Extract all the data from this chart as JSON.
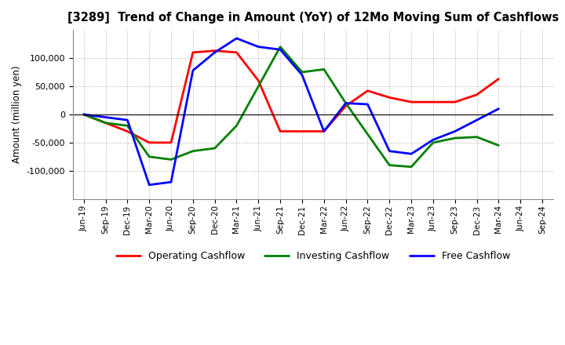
{
  "title": "[3289]  Trend of Change in Amount (YoY) of 12Mo Moving Sum of Cashflows",
  "ylabel": "Amount (million yen)",
  "x_labels": [
    "Jun-19",
    "Sep-19",
    "Dec-19",
    "Mar-20",
    "Jun-20",
    "Sep-20",
    "Dec-20",
    "Mar-21",
    "Jun-21",
    "Sep-21",
    "Dec-21",
    "Mar-22",
    "Jun-22",
    "Sep-22",
    "Dec-22",
    "Mar-23",
    "Jun-23",
    "Sep-23",
    "Dec-23",
    "Mar-24",
    "Jun-24",
    "Sep-24"
  ],
  "operating": [
    0,
    -15000,
    -30000,
    -50000,
    -50000,
    110000,
    113000,
    110000,
    60000,
    -30000,
    -30000,
    -30000,
    15000,
    42000,
    30000,
    22000,
    22000,
    22000,
    35000,
    63000,
    null,
    null
  ],
  "investing": [
    0,
    -15000,
    -20000,
    -75000,
    -80000,
    -65000,
    -60000,
    -20000,
    50000,
    120000,
    75000,
    80000,
    20000,
    -35000,
    -90000,
    -93000,
    -50000,
    -42000,
    -40000,
    -55000,
    null,
    null
  ],
  "free": [
    0,
    -5000,
    -10000,
    -125000,
    -120000,
    78000,
    110000,
    135000,
    120000,
    115000,
    70000,
    -30000,
    20000,
    18000,
    -65000,
    -70000,
    -45000,
    -30000,
    -10000,
    10000,
    null,
    null
  ],
  "operating_color": "#ff0000",
  "investing_color": "#008000",
  "free_color": "#0000ff",
  "ylim": [
    -150000,
    150000
  ],
  "yticks": [
    -100000,
    -50000,
    0,
    50000,
    100000
  ],
  "background_color": "#ffffff",
  "grid_color": "#aaaaaa"
}
